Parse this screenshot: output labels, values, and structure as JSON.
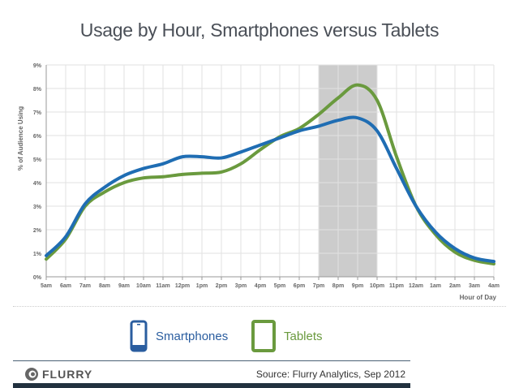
{
  "chart_data": {
    "type": "line",
    "title": "Usage by Hour, Smartphones versus Tablets",
    "xlabel": "Hour of Day",
    "ylabel": "% of Audience Using",
    "ylim": [
      0,
      9
    ],
    "yticks": [
      "0%",
      "1%",
      "2%",
      "3%",
      "4%",
      "5%",
      "6%",
      "7%",
      "8%",
      "9%"
    ],
    "categories": [
      "5am",
      "6am",
      "7am",
      "8am",
      "9am",
      "10am",
      "11am",
      "12pm",
      "1pm",
      "2pm",
      "3pm",
      "4pm",
      "5pm",
      "6pm",
      "7pm",
      "8pm",
      "9pm",
      "10pm",
      "11pm",
      "12am",
      "1am",
      "2am",
      "3am",
      "4am"
    ],
    "highlight": {
      "from": "7pm",
      "to": "10pm",
      "color": "#cccccc"
    },
    "grid": true,
    "legend": "bottom-center",
    "series": [
      {
        "name": "Smartphones",
        "color": "#1f6db3",
        "values": [
          0.9,
          1.7,
          3.1,
          3.8,
          4.3,
          4.6,
          4.8,
          5.1,
          5.1,
          5.05,
          5.3,
          5.6,
          5.9,
          6.2,
          6.4,
          6.65,
          6.75,
          6.2,
          4.6,
          3.0,
          1.9,
          1.2,
          0.8,
          0.65
        ]
      },
      {
        "name": "Tablets",
        "color": "#6a9a3e",
        "values": [
          0.75,
          1.6,
          3.0,
          3.6,
          4.0,
          4.2,
          4.25,
          4.35,
          4.4,
          4.45,
          4.8,
          5.4,
          5.95,
          6.3,
          6.9,
          7.6,
          8.15,
          7.5,
          5.1,
          3.0,
          1.8,
          1.05,
          0.7,
          0.55
        ]
      }
    ]
  },
  "footer": {
    "brand": "FLURRY",
    "source": "Source: Flurry Analytics, Sep 2012"
  }
}
